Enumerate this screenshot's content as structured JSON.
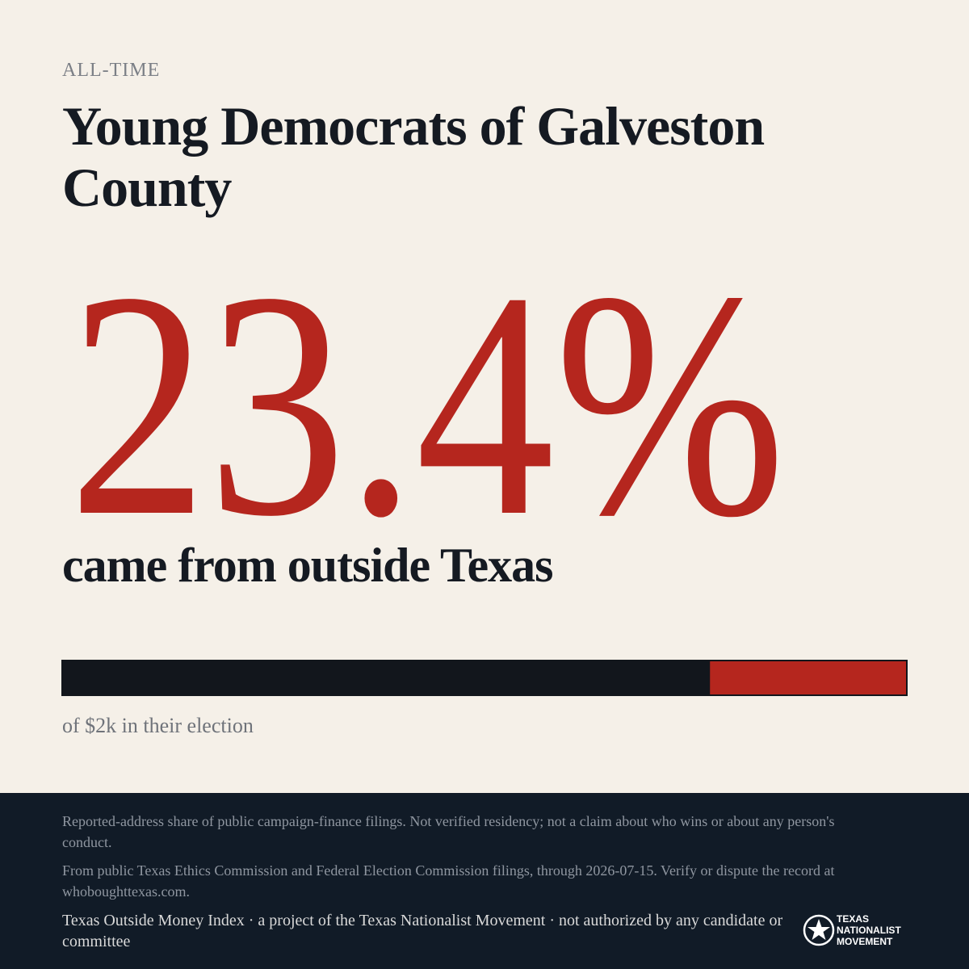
{
  "eyebrow": "ALL-TIME",
  "title": "Young Democrats of Galveston County",
  "bar": {
    "values": [
      23.4
    ],
    "value_labels": [
      "23.4%"
    ],
    "xlim": [
      0,
      100
    ],
    "color": "#b5261e",
    "base_color": "#12161c"
  },
  "caption": "came from outside Texas",
  "bar_note": "of $2k in their election",
  "footer": {
    "disclaimer": "Reported-address share of public campaign-finance filings. Not verified residency; not a claim about who wins or about any person's conduct.",
    "source": "From public Texas Ethics Commission and Federal Election Commission filings, through 2026-07-15. Verify or dispute the record at whoboughttexas.com.",
    "credit": "Texas Outside Money Index · a project of the Texas Nationalist Movement · not authorized by any candidate or committee",
    "logo_lines": [
      "TEXAS",
      "NATIONALIST",
      "MOVEMENT"
    ]
  }
}
